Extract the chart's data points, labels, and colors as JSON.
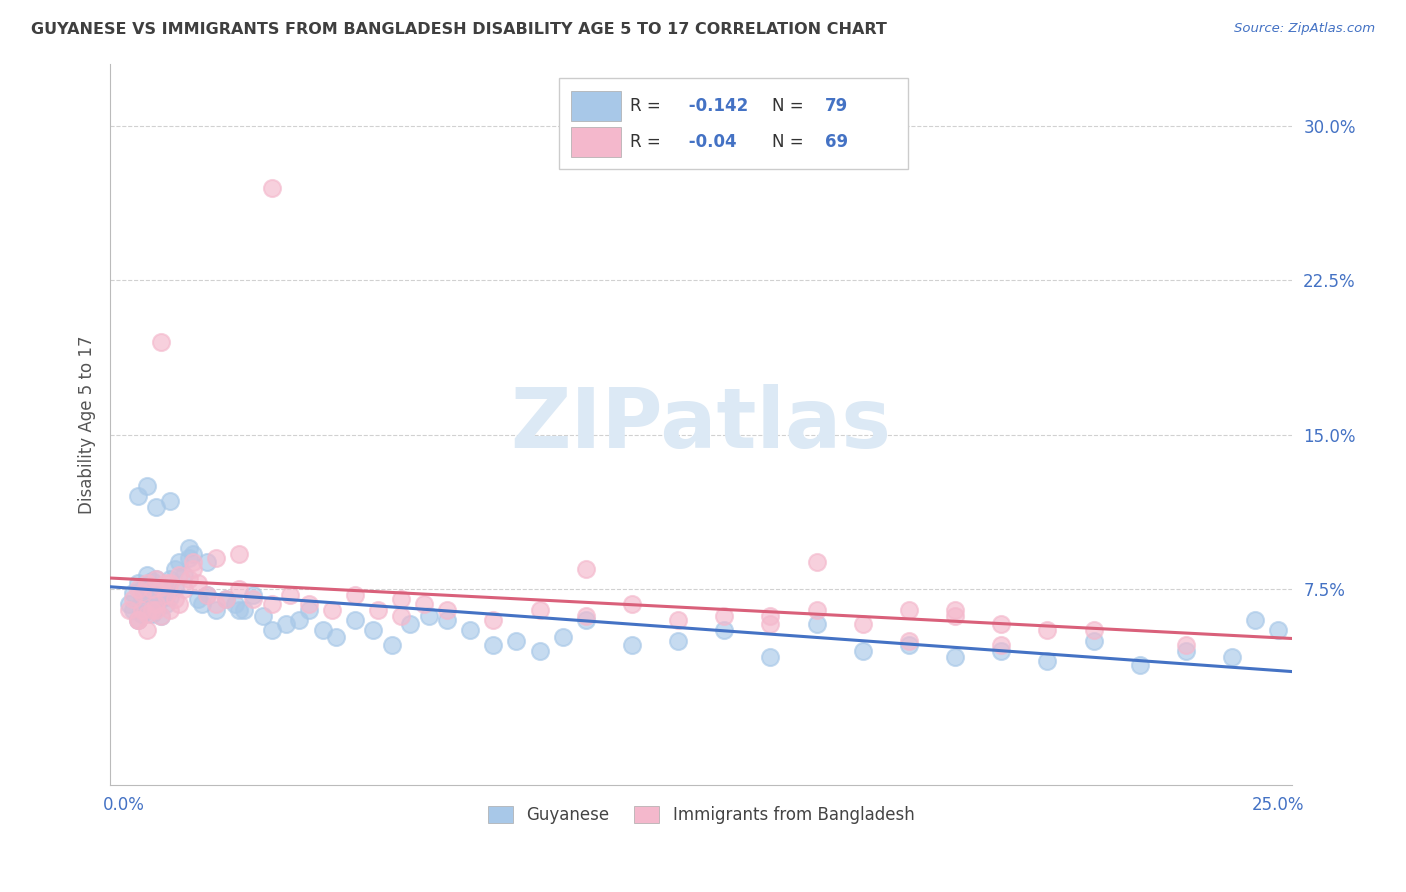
{
  "title": "GUYANESE VS IMMIGRANTS FROM BANGLADESH DISABILITY AGE 5 TO 17 CORRELATION CHART",
  "source": "Source: ZipAtlas.com",
  "ylabel": "Disability Age 5 to 17",
  "xlim": [
    -0.003,
    0.253
  ],
  "ylim": [
    -0.02,
    0.33
  ],
  "xtick_positions": [
    0.0,
    0.05,
    0.1,
    0.15,
    0.2,
    0.25
  ],
  "xtick_labels": [
    "0.0%",
    "",
    "",
    "",
    "",
    "25.0%"
  ],
  "ytick_positions": [
    0.075,
    0.15,
    0.225,
    0.3
  ],
  "ytick_labels": [
    "7.5%",
    "15.0%",
    "22.5%",
    "30.0%"
  ],
  "R_blue": -0.142,
  "N_blue": 79,
  "R_pink": -0.04,
  "N_pink": 69,
  "blue_color": "#a8c8e8",
  "pink_color": "#f4b8cc",
  "blue_line_color": "#4472c4",
  "pink_line_color": "#d9607a",
  "background_color": "#ffffff",
  "watermark_text": "ZIPatlas",
  "watermark_color": "#dce9f5",
  "grid_color": "#cccccc",
  "title_color": "#3f3f3f",
  "legend_text_color": "#4472c4",
  "legend_R_color": "#000000",
  "axis_value_color": "#4472c4",
  "ylabel_color": "#555555",
  "legend_blue_label": "Guyanese",
  "legend_pink_label": "Immigrants from Bangladesh",
  "blue_x": [
    0.001,
    0.002,
    0.002,
    0.003,
    0.003,
    0.004,
    0.004,
    0.004,
    0.005,
    0.005,
    0.005,
    0.006,
    0.006,
    0.006,
    0.007,
    0.007,
    0.007,
    0.008,
    0.008,
    0.008,
    0.009,
    0.009,
    0.01,
    0.01,
    0.011,
    0.011,
    0.012,
    0.013,
    0.014,
    0.015,
    0.016,
    0.017,
    0.018,
    0.02,
    0.022,
    0.024,
    0.026,
    0.028,
    0.03,
    0.032,
    0.035,
    0.038,
    0.04,
    0.043,
    0.046,
    0.05,
    0.054,
    0.058,
    0.062,
    0.066,
    0.07,
    0.075,
    0.08,
    0.085,
    0.09,
    0.095,
    0.1,
    0.11,
    0.12,
    0.13,
    0.14,
    0.15,
    0.16,
    0.17,
    0.18,
    0.19,
    0.2,
    0.21,
    0.22,
    0.23,
    0.24,
    0.245,
    0.25,
    0.003,
    0.005,
    0.007,
    0.01,
    0.014,
    0.018,
    0.025
  ],
  "blue_y": [
    0.068,
    0.073,
    0.065,
    0.078,
    0.06,
    0.075,
    0.07,
    0.063,
    0.082,
    0.073,
    0.065,
    0.079,
    0.072,
    0.063,
    0.08,
    0.074,
    0.066,
    0.076,
    0.07,
    0.062,
    0.075,
    0.068,
    0.08,
    0.071,
    0.085,
    0.076,
    0.088,
    0.082,
    0.09,
    0.092,
    0.07,
    0.068,
    0.072,
    0.065,
    0.07,
    0.068,
    0.065,
    0.072,
    0.062,
    0.055,
    0.058,
    0.06,
    0.065,
    0.055,
    0.052,
    0.06,
    0.055,
    0.048,
    0.058,
    0.062,
    0.06,
    0.055,
    0.048,
    0.05,
    0.045,
    0.052,
    0.06,
    0.048,
    0.05,
    0.055,
    0.042,
    0.058,
    0.045,
    0.048,
    0.042,
    0.045,
    0.04,
    0.05,
    0.038,
    0.045,
    0.042,
    0.06,
    0.055,
    0.12,
    0.125,
    0.115,
    0.118,
    0.095,
    0.088,
    0.065
  ],
  "pink_x": [
    0.001,
    0.002,
    0.003,
    0.003,
    0.004,
    0.004,
    0.005,
    0.005,
    0.006,
    0.006,
    0.007,
    0.007,
    0.008,
    0.008,
    0.009,
    0.01,
    0.01,
    0.011,
    0.012,
    0.013,
    0.014,
    0.015,
    0.016,
    0.018,
    0.02,
    0.022,
    0.025,
    0.028,
    0.032,
    0.036,
    0.04,
    0.045,
    0.05,
    0.055,
    0.06,
    0.065,
    0.07,
    0.08,
    0.09,
    0.1,
    0.11,
    0.12,
    0.13,
    0.14,
    0.15,
    0.16,
    0.17,
    0.18,
    0.19,
    0.2,
    0.003,
    0.005,
    0.007,
    0.009,
    0.012,
    0.015,
    0.02,
    0.025,
    0.06,
    0.1,
    0.14,
    0.17,
    0.19,
    0.21,
    0.23,
    0.032,
    0.008,
    0.15,
    0.18
  ],
  "pink_y": [
    0.065,
    0.07,
    0.075,
    0.06,
    0.073,
    0.065,
    0.078,
    0.063,
    0.075,
    0.065,
    0.08,
    0.068,
    0.076,
    0.062,
    0.072,
    0.078,
    0.065,
    0.07,
    0.068,
    0.075,
    0.08,
    0.085,
    0.078,
    0.072,
    0.068,
    0.07,
    0.075,
    0.07,
    0.068,
    0.072,
    0.068,
    0.065,
    0.072,
    0.065,
    0.062,
    0.068,
    0.065,
    0.06,
    0.065,
    0.062,
    0.068,
    0.06,
    0.062,
    0.058,
    0.065,
    0.058,
    0.065,
    0.062,
    0.058,
    0.055,
    0.06,
    0.055,
    0.065,
    0.078,
    0.082,
    0.088,
    0.09,
    0.092,
    0.07,
    0.085,
    0.062,
    0.05,
    0.048,
    0.055,
    0.048,
    0.27,
    0.195,
    0.088,
    0.065
  ]
}
